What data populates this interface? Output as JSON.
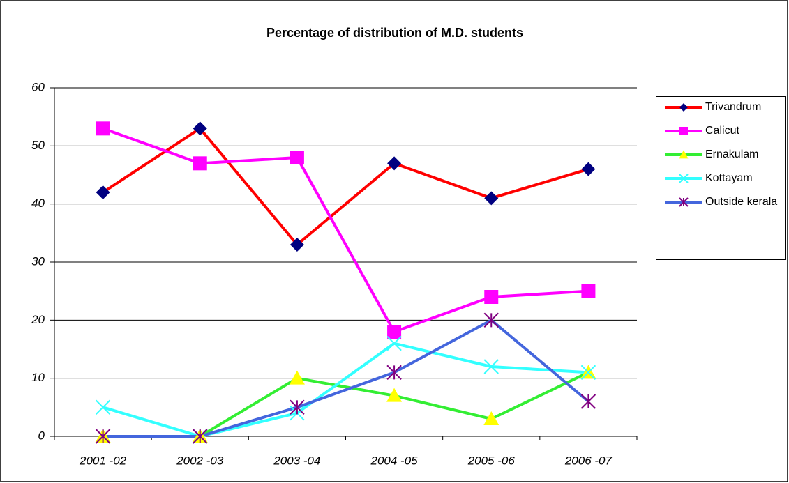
{
  "chart_data": {
    "type": "line",
    "title": "Percentage of distribution of M.D. students",
    "categories": [
      "2001 -02",
      "2002 -03",
      "2003 -04",
      "2004 -05",
      "2005 -06",
      "2006 -07"
    ],
    "series": [
      {
        "name": "Trivandrum",
        "color": "#ff0000",
        "marker": "diamond",
        "marker_color": "#000080",
        "values": [
          42,
          53,
          33,
          47,
          41,
          46
        ]
      },
      {
        "name": "Calicut",
        "color": "#ff00ff",
        "marker": "square",
        "marker_color": "#ff00ff",
        "values": [
          53,
          47,
          48,
          18,
          24,
          25
        ]
      },
      {
        "name": "Ernakulam",
        "color": "#33ee33",
        "marker": "triangle",
        "marker_color": "#ffff00",
        "values": [
          0,
          0,
          10,
          7,
          3,
          11
        ]
      },
      {
        "name": "Kottayam",
        "color": "#33ffff",
        "marker": "x",
        "marker_color": "#33ffff",
        "values": [
          5,
          0,
          4,
          16,
          12,
          11
        ]
      },
      {
        "name": "Outside kerala",
        "color": "#4466dd",
        "marker": "asterisk",
        "marker_color": "#800080",
        "values": [
          0,
          0,
          5,
          11,
          20,
          6
        ]
      }
    ],
    "ylim": [
      0,
      60
    ],
    "yticks": [
      0,
      10,
      20,
      30,
      40,
      50,
      60
    ],
    "grid": true,
    "legend": "right"
  }
}
